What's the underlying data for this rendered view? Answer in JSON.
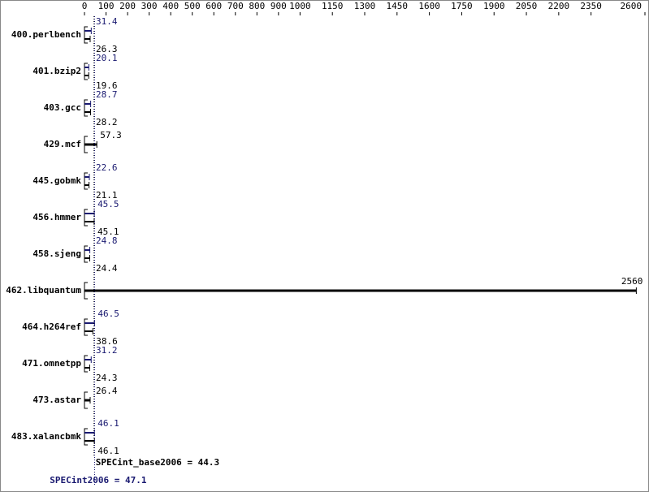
{
  "chart_data": {
    "type": "bar",
    "orientation": "horizontal",
    "categories": [
      "400.perlbench",
      "401.bzip2",
      "403.gcc",
      "429.mcf",
      "445.gobmk",
      "456.hmmer",
      "458.sjeng",
      "462.libquantum",
      "464.h264ref",
      "471.omnetpp",
      "473.astar",
      "483.xalancbmk"
    ],
    "series": [
      {
        "color": "#000000",
        "values": [
          26.3,
          19.6,
          28.2,
          57.3,
          21.1,
          45.1,
          24.4,
          2560,
          38.6,
          24.3,
          26.4,
          46.1
        ]
      },
      {
        "color": "#191970",
        "values": [
          31.4,
          20.1,
          28.7,
          null,
          22.6,
          45.5,
          24.8,
          null,
          46.5,
          31.2,
          null,
          46.1
        ]
      }
    ],
    "xlim": [
      0,
      2600
    ],
    "xticks": [
      0,
      100,
      200,
      300,
      400,
      500,
      600,
      700,
      800,
      900,
      1000,
      1150,
      1300,
      1450,
      1600,
      1750,
      1900,
      2050,
      2200,
      2350,
      2600
    ],
    "annotations": [
      {
        "text": "SPECint_base2006 = 44.3",
        "value": 44.3,
        "color": "#000000"
      },
      {
        "text": "SPECint2006 = 47.1",
        "value": 47.1,
        "color": "#191970"
      }
    ]
  }
}
